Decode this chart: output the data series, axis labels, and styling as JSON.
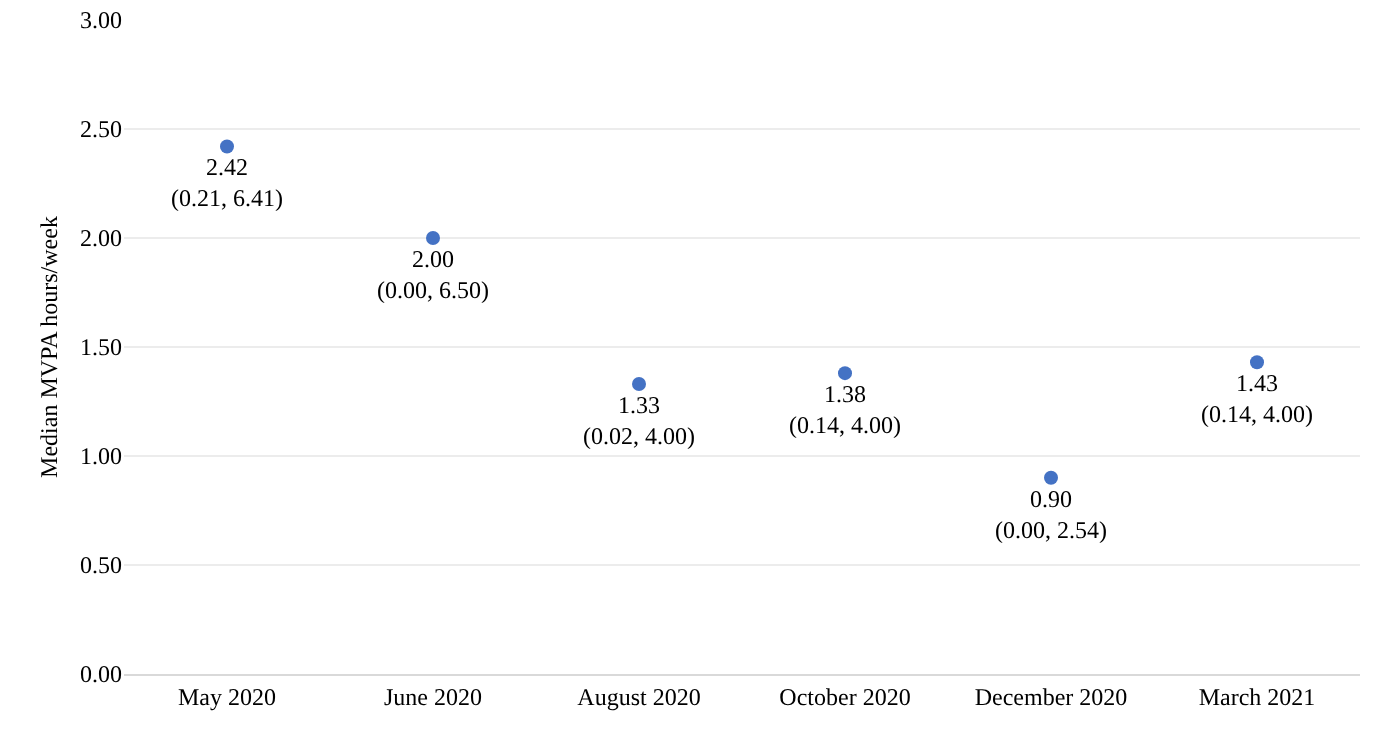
{
  "chart_data": {
    "type": "scatter",
    "ylabel": "Median MVPA hours/week",
    "categories": [
      "May 2020",
      "June 2020",
      "August 2020",
      "October 2020",
      "December 2020",
      "March 2021"
    ],
    "values": [
      2.42,
      2.0,
      1.33,
      1.38,
      0.9,
      1.43
    ],
    "value_labels": [
      "2.42\n(0.21, 6.41)",
      "2.00\n(0.00, 6.50)",
      "1.33\n(0.02, 4.00)",
      "1.38\n(0.14, 4.00)",
      "0.90\n(0.00, 2.54)",
      "1.43\n(0.14, 4.00)"
    ],
    "color": "#4472c4",
    "marker": "circle",
    "grid": "y",
    "ylim": [
      0,
      3
    ],
    "yticks": [
      {
        "value": 0,
        "label": "0.00"
      },
      {
        "value": 0.5,
        "label": "0.50"
      },
      {
        "value": 1,
        "label": "1.00"
      },
      {
        "value": 1.5,
        "label": "1.50"
      },
      {
        "value": 2,
        "label": "2.00"
      },
      {
        "value": 2.5,
        "label": "2.50"
      },
      {
        "value": 3,
        "label": "3.00"
      }
    ]
  }
}
